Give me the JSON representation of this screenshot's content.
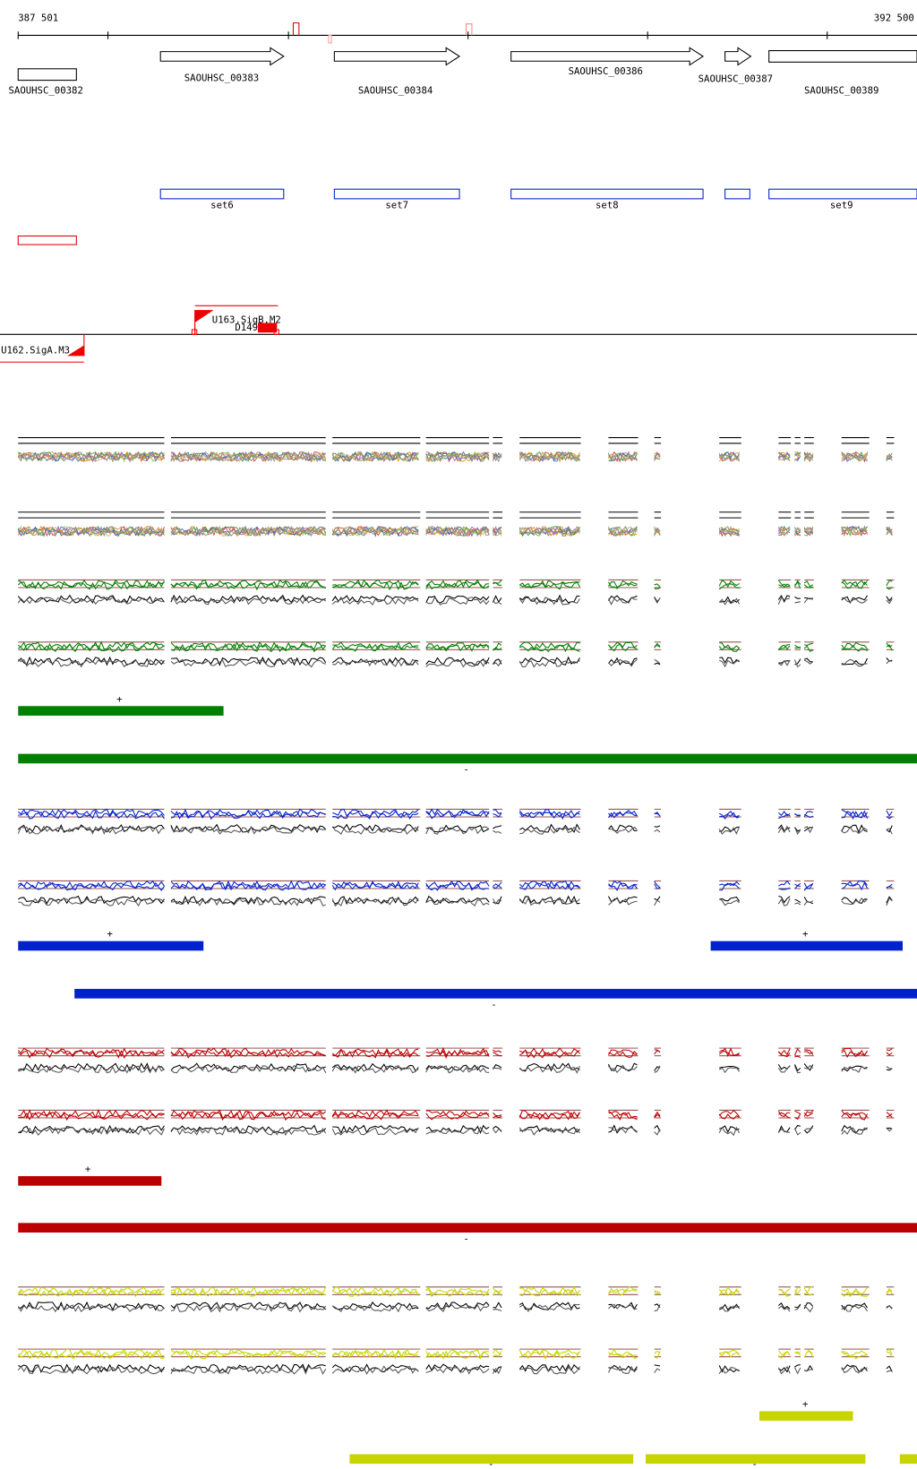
{
  "ruler": {
    "start": "387 501",
    "end": "392 500"
  },
  "genes": [
    {
      "label": "SAOUHSC_00382"
    },
    {
      "label": "SAOUHSC_00383"
    },
    {
      "label": "SAOUHSC_00384"
    },
    {
      "label": "SAOUHSC_00386"
    },
    {
      "label": "SAOUHSC_00387"
    },
    {
      "label": "SAOUHSC_00389"
    }
  ],
  "sets": [
    {
      "label": "set6"
    },
    {
      "label": "set7"
    },
    {
      "label": "set8"
    },
    {
      "label": null
    },
    {
      "label": "set9"
    }
  ],
  "promoters": [
    {
      "label": "U163.SigB.M2"
    },
    {
      "label": "D149"
    },
    {
      "label": "U162.SigA.M3"
    }
  ],
  "tracks": [
    {
      "color": "#008000",
      "bars": [
        {
          "strand": "+"
        },
        {
          "strand": "-"
        }
      ]
    },
    {
      "color": "#0022cc",
      "bars": [
        {
          "strand": "+"
        },
        {
          "strand": "+"
        },
        {
          "strand": "-"
        }
      ]
    },
    {
      "color": "#bb0000",
      "bars": [
        {
          "strand": "+"
        },
        {
          "strand": "-"
        }
      ]
    },
    {
      "color": "#c8d400",
      "bars": [
        {
          "strand": "+"
        },
        {
          "strand": "-"
        },
        {
          "strand": "-"
        },
        {
          "strand": "-"
        }
      ]
    }
  ]
}
